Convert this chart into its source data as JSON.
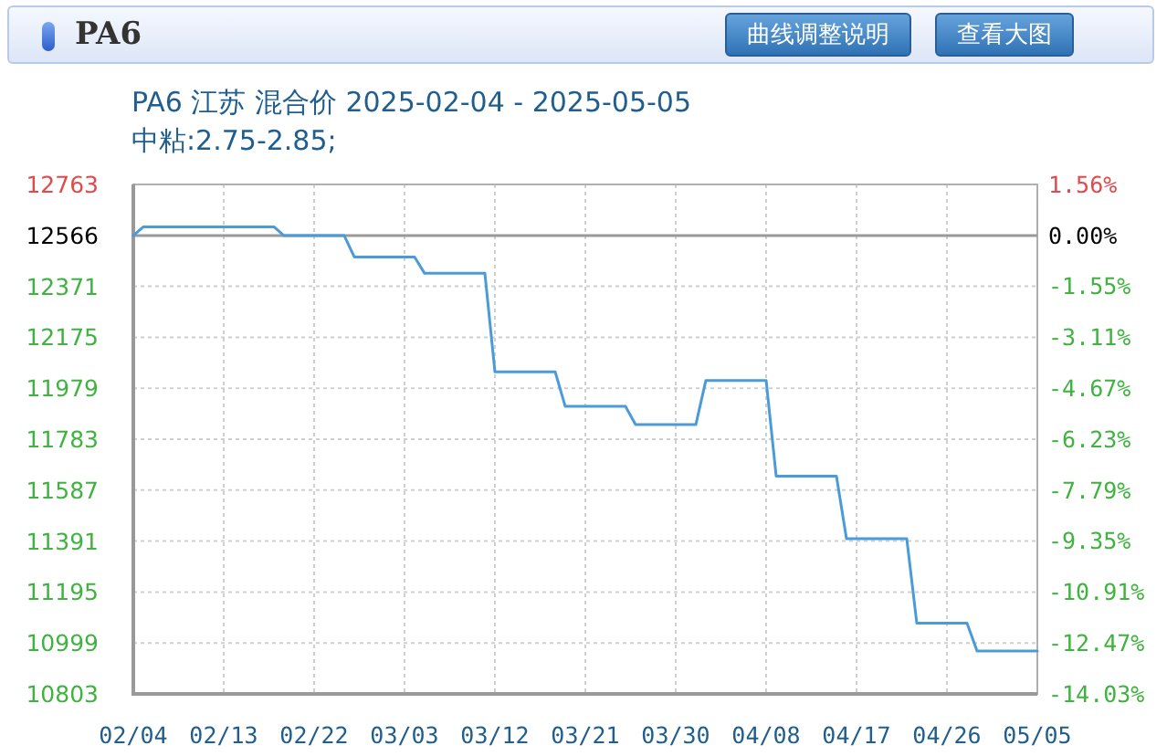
{
  "chart_data": {
    "type": "line",
    "title": "PA6",
    "subtitle": "PA6 江苏 混合价 2025-02-04 - 2025-05-05",
    "annotations": [
      "中粘:2.75-2.85;",
      "曲线调整说明",
      "查看大图"
    ],
    "x": [
      "2025-02-04",
      "2025-02-05",
      "2025-02-18",
      "2025-02-19",
      "2025-02-25",
      "2025-02-26",
      "2025-03-04",
      "2025-03-05",
      "2025-03-11",
      "2025-03-12",
      "2025-03-18",
      "2025-03-19",
      "2025-03-25",
      "2025-03-26",
      "2025-04-01",
      "2025-04-02",
      "2025-04-08",
      "2025-04-09",
      "2025-04-15",
      "2025-04-16",
      "2025-04-22",
      "2025-04-23",
      "2025-04-28",
      "2025-04-29",
      "2025-05-05"
    ],
    "series": [
      {
        "color": "#4b9bd8",
        "values": [
          12566,
          12600,
          12600,
          12566,
          12566,
          12484,
          12484,
          12421,
          12421,
          12042,
          12042,
          11909,
          11909,
          11839,
          11839,
          12009,
          12009,
          11641,
          11641,
          11400,
          11400,
          11075,
          11075,
          10968,
          10968
        ]
      }
    ],
    "xlim": [
      "2025-02-04",
      "2025-05-05"
    ],
    "xticks": [
      {
        "value": "2025-02-04",
        "label": "02/04"
      },
      {
        "value": "2025-02-13",
        "label": "02/13"
      },
      {
        "value": "2025-02-22",
        "label": "02/22"
      },
      {
        "value": "2025-03-03",
        "label": "03/03"
      },
      {
        "value": "2025-03-12",
        "label": "03/12"
      },
      {
        "value": "2025-03-21",
        "label": "03/21"
      },
      {
        "value": "2025-03-30",
        "label": "03/30"
      },
      {
        "value": "2025-04-08",
        "label": "04/08"
      },
      {
        "value": "2025-04-17",
        "label": "04/17"
      },
      {
        "value": "2025-04-26",
        "label": "04/26"
      },
      {
        "value": "2025-05-05",
        "label": "05/05"
      }
    ],
    "ylim": [
      10803,
      12763
    ],
    "yticks": [
      10803,
      10999,
      11195,
      11391,
      11587,
      11783,
      11979,
      12175,
      12371,
      12566,
      12763
    ],
    "y2lim": [
      -14.03,
      1.56
    ],
    "y2ticks": [
      {
        "value": 1.56,
        "label": "1.56%"
      },
      {
        "value": 0,
        "label": "0.00%"
      },
      {
        "value": -1.55,
        "label": "-1.55%"
      },
      {
        "value": -3.11,
        "label": "-3.11%"
      },
      {
        "value": -4.67,
        "label": "-4.67%"
      },
      {
        "value": -6.23,
        "label": "-6.23%"
      },
      {
        "value": -7.79,
        "label": "-7.79%"
      },
      {
        "value": -9.35,
        "label": "-9.35%"
      },
      {
        "value": -10.91,
        "label": "-10.91%"
      },
      {
        "value": -12.47,
        "label": "-12.47%"
      },
      {
        "value": -14.03,
        "label": "-14.03%"
      }
    ],
    "ref_lines": [
      {
        "axis": "y",
        "value": 12566,
        "color": "#999999"
      }
    ],
    "grid": true,
    "line_style": "solid"
  }
}
